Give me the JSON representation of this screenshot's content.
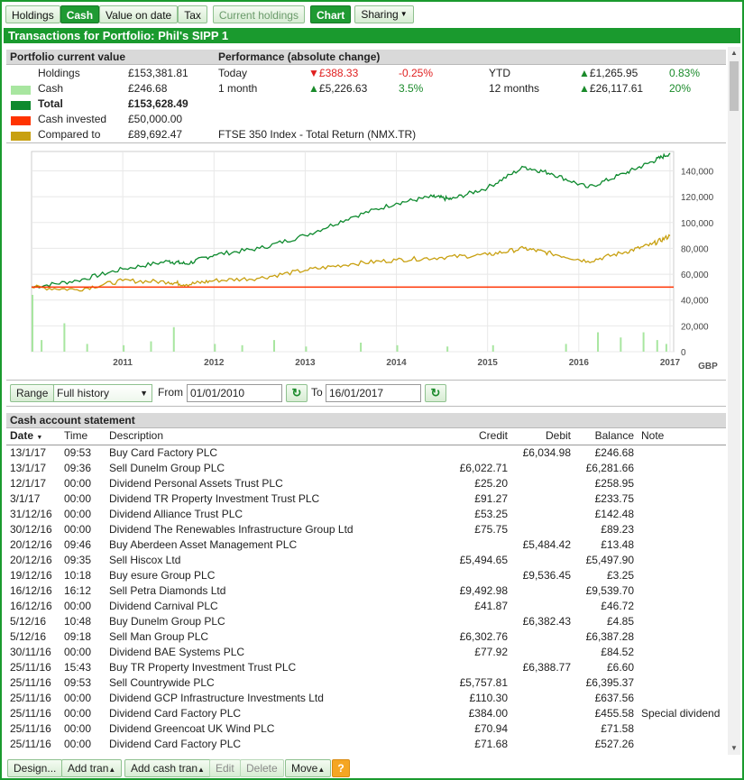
{
  "toolbar": {
    "holdings": "Holdings",
    "cash": "Cash",
    "value_on_date": "Value on date",
    "tax": "Tax",
    "current_holdings": "Current holdings",
    "chart": "Chart",
    "sharing": "Sharing"
  },
  "title": "Transactions for Portfolio: Phil's SIPP 1",
  "summary": {
    "current_value_header": "Portfolio current value",
    "performance_header": "Performance (absolute change)",
    "holdings_label": "Holdings",
    "holdings_value": "£153,381.81",
    "cash_label": "Cash",
    "cash_value": "£246.68",
    "total_label": "Total",
    "total_value": "£153,628.49",
    "cash_invested_label": "Cash invested",
    "cash_invested_value": "£50,000.00",
    "compared_label": "Compared to",
    "compared_value": "£89,692.47",
    "compared_index": "FTSE 350 Index - Total Return (NMX.TR)",
    "today_label": "Today",
    "today_value": "£388.33",
    "today_pct": "-0.25%",
    "ytd_label": "YTD",
    "ytd_value": "£1,265.95",
    "ytd_pct": "0.83%",
    "month_label": "1 month",
    "month_value": "£5,226.63",
    "month_pct": "3.5%",
    "year_label": "12 months",
    "year_value": "£26,117.61",
    "year_pct": "20%",
    "colors": {
      "holdings": "#ffffff",
      "cash": "#a8e6a0",
      "total": "#0e8a2e",
      "cash_invested": "#ff3300",
      "compared": "#c8a010"
    }
  },
  "chart_data": {
    "type": "line",
    "x_labels": [
      "2011",
      "2012",
      "2013",
      "2014",
      "2015",
      "2016",
      "2017"
    ],
    "y_ticks": [
      "140,000",
      "120,000",
      "100,000",
      "80,000",
      "60,000",
      "40,000",
      "20,000",
      "0"
    ],
    "y_unit": "GBP",
    "ylim": [
      0,
      155000
    ],
    "xlim": [
      2010.0,
      2017.04
    ],
    "series": [
      {
        "color": "#0e8a2e",
        "x": [
          2010.0,
          2010.5,
          2011.0,
          2011.5,
          2011.7,
          2012.0,
          2012.5,
          2013.0,
          2013.5,
          2014.0,
          2014.4,
          2014.6,
          2015.0,
          2015.4,
          2015.7,
          2016.1,
          2016.5,
          2016.8,
          2017.0
        ],
        "y": [
          50000,
          55000,
          64000,
          70000,
          68000,
          75000,
          80000,
          90000,
          104000,
          115000,
          120000,
          118000,
          127000,
          143000,
          138000,
          127000,
          138000,
          147000,
          153628
        ]
      },
      {
        "color": "#c8a010",
        "x": [
          2010.0,
          2010.5,
          2011.0,
          2011.5,
          2011.7,
          2012.0,
          2012.5,
          2013.0,
          2013.5,
          2014.0,
          2014.5,
          2015.0,
          2015.4,
          2015.7,
          2016.1,
          2016.5,
          2016.8,
          2017.0
        ],
        "y": [
          50000,
          48000,
          55000,
          54000,
          52000,
          55000,
          57000,
          63000,
          68000,
          71000,
          73000,
          75000,
          80000,
          76000,
          70000,
          77000,
          83000,
          89692
        ]
      },
      {
        "color": "#ff3300",
        "x": [
          2010.0,
          2017.04
        ],
        "y": [
          50000,
          50000
        ]
      }
    ],
    "cash_spikes": {
      "color": "#a8e6a0",
      "x": [
        2010.0,
        2010.1,
        2010.35,
        2010.6,
        2011.0,
        2011.3,
        2011.55,
        2012.0,
        2012.3,
        2012.65,
        2013.0,
        2013.6,
        2014.0,
        2014.55,
        2015.05,
        2015.85,
        2016.2,
        2016.45,
        2016.7,
        2016.85,
        2016.95
      ],
      "y": [
        44000,
        9000,
        22000,
        6000,
        5000,
        8000,
        19000,
        6000,
        5000,
        9000,
        4000,
        7000,
        5000,
        4000,
        5000,
        6000,
        15000,
        11000,
        15000,
        9000,
        6000
      ]
    }
  },
  "range": {
    "label": "Range",
    "selected": "Full history",
    "from_label": "From",
    "from_value": "01/01/2010",
    "to_label": "To",
    "to_value": "16/01/2017"
  },
  "statement": {
    "header": "Cash account statement",
    "columns": {
      "date": "Date",
      "time": "Time",
      "description": "Description",
      "credit": "Credit",
      "debit": "Debit",
      "balance": "Balance",
      "note": "Note"
    },
    "rows": [
      {
        "date": "13/1/17",
        "time": "09:53",
        "desc": "Buy Card Factory PLC",
        "credit": "",
        "debit": "£6,034.98",
        "balance": "£246.68",
        "note": ""
      },
      {
        "date": "13/1/17",
        "time": "09:36",
        "desc": "Sell Dunelm Group PLC",
        "credit": "£6,022.71",
        "debit": "",
        "balance": "£6,281.66",
        "note": ""
      },
      {
        "date": "12/1/17",
        "time": "00:00",
        "desc": "Dividend Personal Assets Trust PLC",
        "credit": "£25.20",
        "debit": "",
        "balance": "£258.95",
        "note": ""
      },
      {
        "date": "3/1/17",
        "time": "00:00",
        "desc": "Dividend TR Property Investment Trust PLC",
        "credit": "£91.27",
        "debit": "",
        "balance": "£233.75",
        "note": ""
      },
      {
        "date": "31/12/16",
        "time": "00:00",
        "desc": "Dividend Alliance Trust PLC",
        "credit": "£53.25",
        "debit": "",
        "balance": "£142.48",
        "note": ""
      },
      {
        "date": "30/12/16",
        "time": "00:00",
        "desc": "Dividend The Renewables Infrastructure Group Ltd",
        "credit": "£75.75",
        "debit": "",
        "balance": "£89.23",
        "note": ""
      },
      {
        "date": "20/12/16",
        "time": "09:46",
        "desc": "Buy Aberdeen Asset Management PLC",
        "credit": "",
        "debit": "£5,484.42",
        "balance": "£13.48",
        "note": ""
      },
      {
        "date": "20/12/16",
        "time": "09:35",
        "desc": "Sell Hiscox Ltd",
        "credit": "£5,494.65",
        "debit": "",
        "balance": "£5,497.90",
        "note": ""
      },
      {
        "date": "19/12/16",
        "time": "10:18",
        "desc": "Buy esure Group PLC",
        "credit": "",
        "debit": "£9,536.45",
        "balance": "£3.25",
        "note": ""
      },
      {
        "date": "16/12/16",
        "time": "16:12",
        "desc": "Sell Petra Diamonds Ltd",
        "credit": "£9,492.98",
        "debit": "",
        "balance": "£9,539.70",
        "note": ""
      },
      {
        "date": "16/12/16",
        "time": "00:00",
        "desc": "Dividend Carnival PLC",
        "credit": "£41.87",
        "debit": "",
        "balance": "£46.72",
        "note": ""
      },
      {
        "date": "5/12/16",
        "time": "10:48",
        "desc": "Buy Dunelm Group PLC",
        "credit": "",
        "debit": "£6,382.43",
        "balance": "£4.85",
        "note": ""
      },
      {
        "date": "5/12/16",
        "time": "09:18",
        "desc": "Sell Man Group PLC",
        "credit": "£6,302.76",
        "debit": "",
        "balance": "£6,387.28",
        "note": ""
      },
      {
        "date": "30/11/16",
        "time": "00:00",
        "desc": "Dividend BAE Systems PLC",
        "credit": "£77.92",
        "debit": "",
        "balance": "£84.52",
        "note": ""
      },
      {
        "date": "25/11/16",
        "time": "15:43",
        "desc": "Buy TR Property Investment Trust PLC",
        "credit": "",
        "debit": "£6,388.77",
        "balance": "£6.60",
        "note": ""
      },
      {
        "date": "25/11/16",
        "time": "09:53",
        "desc": "Sell Countrywide PLC",
        "credit": "£5,757.81",
        "debit": "",
        "balance": "£6,395.37",
        "note": ""
      },
      {
        "date": "25/11/16",
        "time": "00:00",
        "desc": "Dividend GCP Infrastructure Investments Ltd",
        "credit": "£110.30",
        "debit": "",
        "balance": "£637.56",
        "note": ""
      },
      {
        "date": "25/11/16",
        "time": "00:00",
        "desc": "Dividend Card Factory PLC",
        "credit": "£384.00",
        "debit": "",
        "balance": "£455.58",
        "note": "Special dividend"
      },
      {
        "date": "25/11/16",
        "time": "00:00",
        "desc": "Dividend Greencoat UK Wind PLC",
        "credit": "£70.94",
        "debit": "",
        "balance": "£71.58",
        "note": ""
      },
      {
        "date": "25/11/16",
        "time": "00:00",
        "desc": "Dividend Card Factory PLC",
        "credit": "£71.68",
        "debit": "",
        "balance": "£527.26",
        "note": ""
      }
    ]
  },
  "bottom": {
    "design": "Design...",
    "add_tran": "Add tran",
    "add_cash_tran": "Add cash tran",
    "edit": "Edit",
    "delete": "Delete",
    "move": "Move",
    "help": "?"
  }
}
